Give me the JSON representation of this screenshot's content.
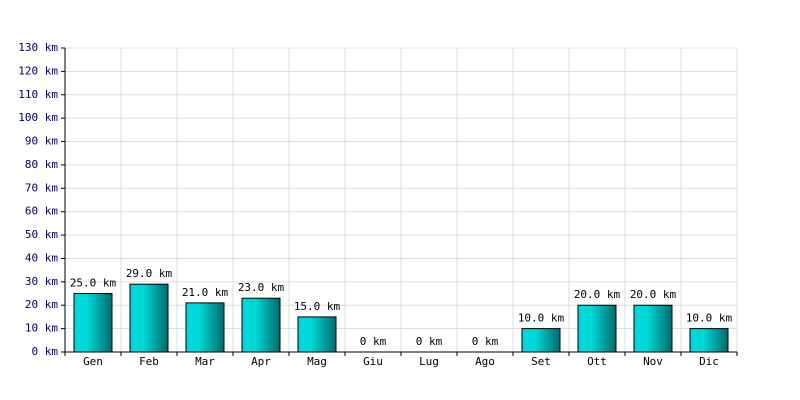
{
  "chart_data": {
    "type": "bar",
    "categories": [
      "Gen",
      "Feb",
      "Mar",
      "Apr",
      "Mag",
      "Giu",
      "Lug",
      "Ago",
      "Set",
      "Ott",
      "Nov",
      "Dic"
    ],
    "values": [
      25,
      29,
      21,
      23,
      15,
      0,
      0,
      0,
      10,
      20,
      20,
      10
    ],
    "value_labels": [
      "25.0 km",
      "29.0 km",
      "21.0 km",
      "23.0 km",
      "15.0 km",
      "0 km",
      "0 km",
      "0 km",
      "10.0 km",
      "20.0 km",
      "20.0 km",
      "10.0 km"
    ],
    "color": "#00d8d8",
    "ylim": [
      0,
      130
    ],
    "yticks": [
      {
        "value": 0,
        "label": "0 km"
      },
      {
        "value": 10,
        "label": "10 km"
      },
      {
        "value": 20,
        "label": "20 km"
      },
      {
        "value": 30,
        "label": "30 km"
      },
      {
        "value": 40,
        "label": "40 km"
      },
      {
        "value": 50,
        "label": "50 km"
      },
      {
        "value": 60,
        "label": "60 km"
      },
      {
        "value": 70,
        "label": "70 km"
      },
      {
        "value": 80,
        "label": "80 km"
      },
      {
        "value": 90,
        "label": "90 km"
      },
      {
        "value": 100,
        "label": "100 km"
      },
      {
        "value": 110,
        "label": "110 km"
      },
      {
        "value": 120,
        "label": "120 km"
      },
      {
        "value": 130,
        "label": "130 km"
      }
    ],
    "grid": true
  }
}
